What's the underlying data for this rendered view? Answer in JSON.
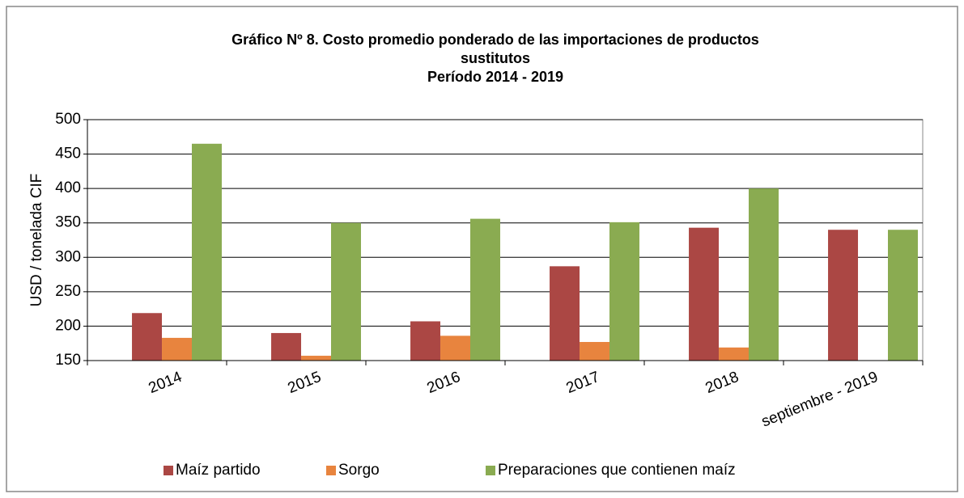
{
  "chart_data": {
    "type": "bar",
    "title": [
      "Gráfico Nº 8. Costo promedio ponderado de las importaciones de productos",
      "sustitutos",
      "Período 2014 - 2019"
    ],
    "y_label": "USD / tonelada CIF",
    "categories": [
      "2014",
      "2015",
      "2016",
      "2017",
      "2018",
      "septiembre - 2019"
    ],
    "series": [
      {
        "name": "Maíz partido",
        "color": "#ab4744",
        "values": [
          219,
          190,
          207,
          287,
          343,
          340
        ]
      },
      {
        "name": "Sorgo",
        "color": "#e8843e",
        "values": [
          183,
          157,
          186,
          177,
          169,
          null
        ]
      },
      {
        "name": "Preparaciones que contienen maíz",
        "color": "#8aab51",
        "values": [
          465,
          350,
          356,
          351,
          400,
          340
        ]
      }
    ],
    "ylim": [
      150,
      500
    ],
    "yticks": [
      150,
      200,
      250,
      300,
      350,
      400,
      450,
      500
    ],
    "grid": true,
    "legend": "bottom"
  }
}
